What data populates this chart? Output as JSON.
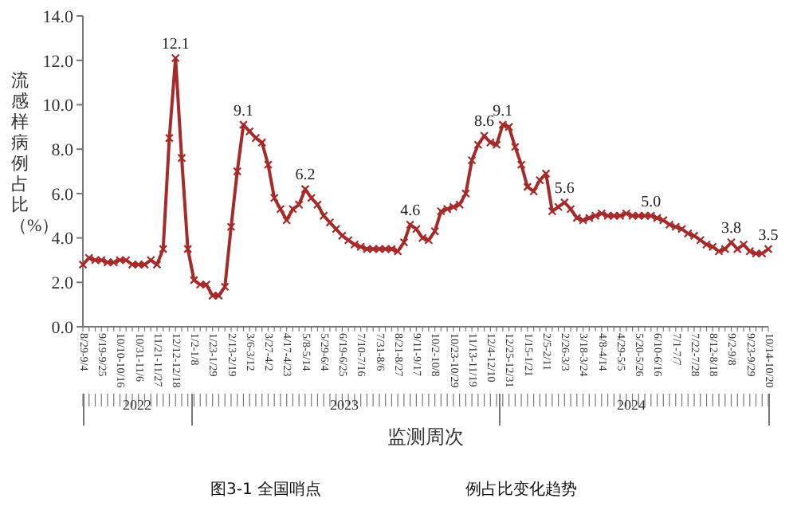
{
  "chart_data": {
    "type": "line",
    "ylabel": "流感样病例占比（%）",
    "xlabel": "监测周次",
    "annotations": [
      "2022",
      "2023",
      "2024",
      "图3-1 全国哨点",
      "例占比变化趋势"
    ],
    "categories": [
      "8/29-9/4",
      null,
      null,
      "9/19-9/25",
      null,
      null,
      "10/10-10/16",
      null,
      null,
      "10/31-11/6",
      null,
      null,
      "11/21-11/27",
      null,
      null,
      "12/12-12/18",
      null,
      null,
      "1/2-1/8",
      null,
      null,
      "1/23-1/29",
      null,
      null,
      "2/13-2/19",
      null,
      null,
      "3/6-3/12",
      null,
      null,
      "3/27-4/2",
      null,
      null,
      "4/17-4/23",
      null,
      null,
      "5/8-5/14",
      null,
      null,
      "5/29-6/4",
      null,
      null,
      "6/19-6/25",
      null,
      null,
      "7/10-7/16",
      null,
      null,
      "7/31-8/6",
      null,
      null,
      "8/21-8/27",
      null,
      null,
      "9/11-9/17",
      null,
      null,
      "10/2-10/8",
      null,
      null,
      "10/23-10/29",
      null,
      null,
      "11/13-11/19",
      null,
      null,
      "12/4-12/10",
      null,
      null,
      "12/25-12/31",
      null,
      null,
      "1/15-1/21",
      null,
      null,
      "2/5-2/11",
      null,
      null,
      "2/26-3/3",
      null,
      null,
      "3/18-3/24",
      null,
      null,
      "4/8-4/14",
      null,
      null,
      "4/29-5/5",
      null,
      null,
      "5/20-5/26",
      null,
      null,
      "6/10-6/16",
      null,
      null,
      "7/1-7/7",
      null,
      null,
      "7/22-7/28",
      null,
      null,
      "8/12-8/18",
      null,
      null,
      "9/2-9/8",
      null,
      null,
      "9/23-9/29",
      null,
      null,
      "10/14-10/20"
    ],
    "values": [
      2.8,
      3.1,
      3.0,
      3.0,
      2.9,
      2.9,
      3.0,
      3.0,
      2.8,
      2.8,
      2.8,
      3.0,
      2.8,
      3.5,
      8.5,
      12.1,
      7.6,
      3.5,
      2.1,
      1.9,
      1.9,
      1.4,
      1.4,
      1.8,
      4.5,
      7.0,
      9.1,
      8.8,
      8.5,
      8.3,
      7.3,
      5.8,
      5.3,
      4.8,
      5.3,
      5.5,
      6.2,
      5.8,
      5.5,
      5.0,
      4.7,
      4.4,
      4.1,
      3.9,
      3.7,
      3.6,
      3.5,
      3.5,
      3.5,
      3.5,
      3.5,
      3.4,
      3.8,
      4.6,
      4.4,
      4.0,
      3.9,
      4.3,
      5.2,
      5.3,
      5.4,
      5.5,
      6.0,
      7.5,
      8.2,
      8.6,
      8.3,
      8.2,
      9.1,
      9.0,
      8.1,
      7.3,
      6.3,
      6.1,
      6.6,
      6.9,
      5.2,
      5.4,
      5.6,
      5.3,
      4.9,
      4.8,
      4.9,
      5.0,
      5.1,
      5.0,
      5.0,
      5.0,
      5.1,
      5.0,
      5.0,
      5.0,
      5.0,
      4.9,
      4.8,
      4.6,
      4.5,
      4.4,
      4.2,
      4.1,
      3.9,
      3.7,
      3.6,
      3.4,
      3.5,
      3.8,
      3.5,
      3.7,
      3.4,
      3.3,
      3.3,
      3.5
    ],
    "value_labels": [
      null,
      null,
      null,
      null,
      null,
      null,
      null,
      null,
      null,
      null,
      null,
      null,
      null,
      null,
      null,
      "12.1",
      null,
      null,
      null,
      null,
      null,
      null,
      null,
      null,
      null,
      null,
      "9.1",
      null,
      null,
      null,
      null,
      null,
      null,
      null,
      null,
      null,
      "6.2",
      null,
      null,
      null,
      null,
      null,
      null,
      null,
      null,
      null,
      null,
      null,
      null,
      null,
      null,
      null,
      null,
      "4.6",
      null,
      null,
      null,
      null,
      null,
      null,
      null,
      null,
      null,
      null,
      null,
      "8.6",
      null,
      null,
      "9.1",
      null,
      null,
      null,
      null,
      null,
      null,
      null,
      null,
      null,
      "5.6",
      null,
      null,
      null,
      null,
      null,
      null,
      null,
      null,
      null,
      null,
      null,
      null,
      null,
      "5.0",
      null,
      null,
      null,
      null,
      null,
      null,
      null,
      null,
      null,
      null,
      null,
      null,
      "3.8",
      null,
      null,
      null,
      null,
      null,
      "3.5"
    ],
    "color": "#a52a2a",
    "marker": "cross",
    "line_style": "solid",
    "ylim": [
      0,
      14
    ],
    "yticks": [
      {
        "value": 0,
        "label": "0.0"
      },
      {
        "value": 2,
        "label": "2.0"
      },
      {
        "value": 4,
        "label": "4.0"
      },
      {
        "value": 6,
        "label": "6.0"
      },
      {
        "value": 8,
        "label": "8.0"
      },
      {
        "value": 10,
        "label": "10.0"
      },
      {
        "value": 12,
        "label": "12.0"
      },
      {
        "value": 14,
        "label": "14.0"
      }
    ]
  }
}
